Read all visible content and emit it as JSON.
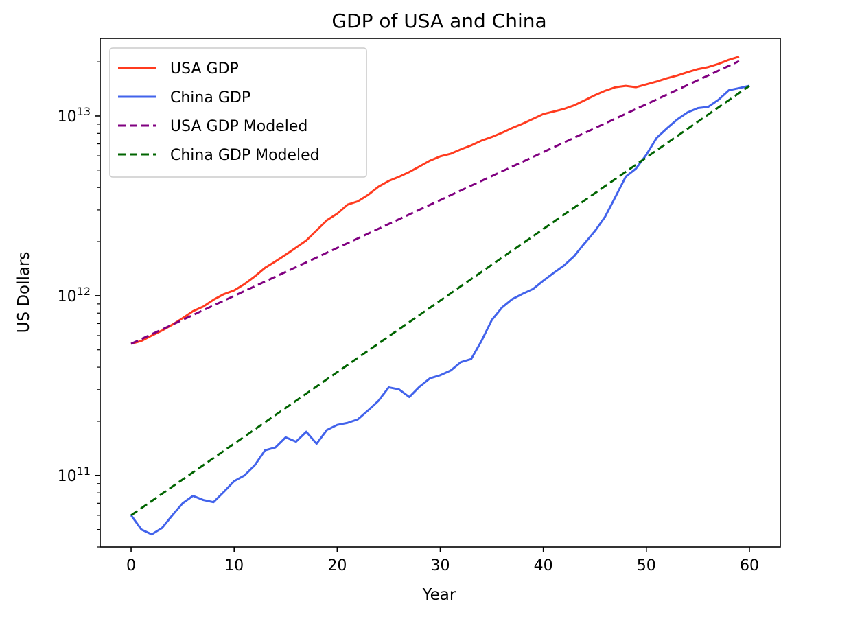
{
  "chart_data": {
    "type": "line",
    "title": "GDP of USA and China",
    "xlabel": "Year",
    "ylabel": "US Dollars",
    "xlim": [
      -3,
      63
    ],
    "ylim": [
      40000000000,
      27000000000000
    ],
    "yscale": "log",
    "grid": false,
    "legend_position": "top-left",
    "xticks": [
      0,
      10,
      20,
      30,
      40,
      50,
      60
    ],
    "xtick_labels": [
      "0",
      "10",
      "20",
      "30",
      "40",
      "50",
      "60"
    ],
    "yticks": [
      100000000000,
      1000000000000,
      10000000000000
    ],
    "ytick_labels": [
      {
        "base": "10",
        "exp": "11"
      },
      {
        "base": "10",
        "exp": "12"
      },
      {
        "base": "10",
        "exp": "13"
      }
    ],
    "series": [
      {
        "name": "USA GDP",
        "color": "#ff3b1f",
        "style": "solid",
        "x": [
          0,
          1,
          2,
          3,
          4,
          5,
          6,
          7,
          8,
          9,
          10,
          11,
          12,
          13,
          14,
          15,
          16,
          17,
          18,
          19,
          20,
          21,
          22,
          23,
          24,
          25,
          26,
          27,
          28,
          29,
          30,
          31,
          32,
          33,
          34,
          35,
          36,
          37,
          38,
          39,
          40,
          41,
          42,
          43,
          44,
          45,
          46,
          47,
          48,
          49,
          50,
          51,
          52,
          53,
          54,
          55,
          56,
          57,
          58,
          59
        ],
        "values": [
          540000000000.0,
          560000000000.0,
          600000000000.0,
          640000000000.0,
          690000000000.0,
          750000000000.0,
          820000000000.0,
          870000000000.0,
          950000000000.0,
          1020000000000.0,
          1070000000000.0,
          1160000000000.0,
          1280000000000.0,
          1430000000000.0,
          1550000000000.0,
          1690000000000.0,
          1850000000000.0,
          2030000000000.0,
          2310000000000.0,
          2630000000000.0,
          2860000000000.0,
          3210000000000.0,
          3350000000000.0,
          3640000000000.0,
          4040000000000.0,
          4350000000000.0,
          4590000000000.0,
          4880000000000.0,
          5240000000000.0,
          5640000000000.0,
          5960000000000.0,
          6160000000000.0,
          6520000000000.0,
          6860000000000.0,
          7290000000000.0,
          7640000000000.0,
          8070000000000.0,
          8580000000000.0,
          9060000000000.0,
          9630000000000.0,
          10250000000000.0,
          10580000000000.0,
          10940000000000.0,
          11460000000000.0,
          12210000000000.0,
          13040000000000.0,
          13810000000000.0,
          14450000000000.0,
          14710000000000.0,
          14450000000000.0,
          14990000000000.0,
          15540000000000.0,
          16200000000000.0,
          16780000000000.0,
          17520000000000.0,
          18220000000000.0,
          18710000000000.0,
          19490000000000.0,
          20530000000000.0,
          21380000000000.0
        ]
      },
      {
        "name": "China GDP",
        "color": "#4263eb",
        "style": "solid",
        "x": [
          0,
          1,
          2,
          3,
          4,
          5,
          6,
          7,
          8,
          9,
          10,
          11,
          12,
          13,
          14,
          15,
          16,
          17,
          18,
          19,
          20,
          21,
          22,
          23,
          24,
          25,
          26,
          27,
          28,
          29,
          30,
          31,
          32,
          33,
          34,
          35,
          36,
          37,
          38,
          39,
          40,
          41,
          42,
          43,
          44,
          45,
          46,
          47,
          48,
          49,
          50,
          51,
          52,
          53,
          54,
          55,
          56,
          57,
          58,
          59,
          60
        ],
        "values": [
          60000000000.0,
          50000000000.0,
          47000000000.0,
          51000000000.0,
          60000000000.0,
          70000000000.0,
          77000000000.0,
          73000000000.0,
          71000000000.0,
          81000000000.0,
          93000000000.0,
          100000000000.0,
          114000000000.0,
          138000000000.0,
          143000000000.0,
          163000000000.0,
          154000000000.0,
          175000000000.0,
          150000000000.0,
          179000000000.0,
          191000000000.0,
          196000000000.0,
          205000000000.0,
          230000000000.0,
          260000000000.0,
          309000000000.0,
          301000000000.0,
          273000000000.0,
          312000000000.0,
          347000000000.0,
          361000000000.0,
          383000000000.0,
          427000000000.0,
          444000000000.0,
          560000000000.0,
          732000000000.0,
          861000000000.0,
          958000000000.0,
          1025000000000.0,
          1089000000000.0,
          1211000000000.0,
          1339000000000.0,
          1471000000000.0,
          1660000000000.0,
          1955000000000.0,
          2286000000000.0,
          2752000000000.0,
          3550000000000.0,
          4594000000000.0,
          5102000000000.0,
          6087000000000.0,
          7552000000000.0,
          8532000000000.0,
          9570000000000.0,
          10475000000000.0,
          11062000000000.0,
          11233000000000.0,
          12310000000000.0,
          13895000000000.0,
          14280000000000.0,
          14723000000000.0
        ]
      },
      {
        "name": "USA GDP Modeled",
        "color": "#800080",
        "style": "dashed",
        "x": [
          0,
          59
        ],
        "values": [
          540000000000.0,
          20200000000000.0
        ]
      },
      {
        "name": "China GDP Modeled",
        "color": "#006400",
        "style": "dashed",
        "x": [
          0,
          60
        ],
        "values": [
          60000000000.0,
          14700000000000.0
        ]
      }
    ]
  }
}
